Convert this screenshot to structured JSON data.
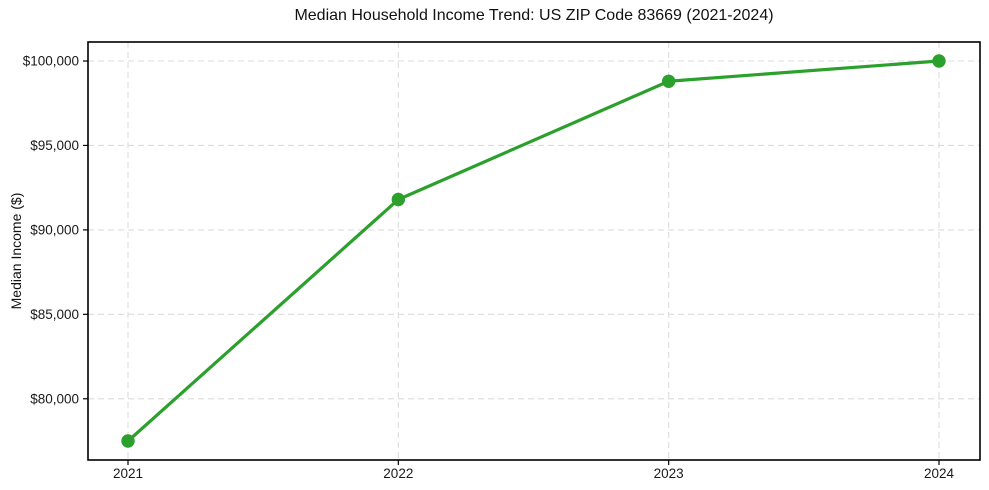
{
  "page": {
    "background_color": "#ffffff"
  },
  "chart_data": {
    "type": "line",
    "title": "Median Household Income Trend: US ZIP Code 83669 (2021-2024)",
    "xlabel": "",
    "ylabel": "Median Income ($)",
    "categories": [
      "2021",
      "2022",
      "2023",
      "2024"
    ],
    "values": [
      77500,
      91800,
      98800,
      100000
    ],
    "ylim": [
      76375,
      101125
    ],
    "yticks": [
      80000,
      85000,
      90000,
      95000,
      100000
    ],
    "ytick_labels": [
      "$80,000",
      "$85,000",
      "$90,000",
      "$95,000",
      "$100,000"
    ],
    "grid": true,
    "grid_style": "dashed",
    "grid_color": "#dcdcdc",
    "legend_position": "none",
    "line_color": "#2ca02c",
    "marker": "circle",
    "spine_color": "#000000"
  }
}
